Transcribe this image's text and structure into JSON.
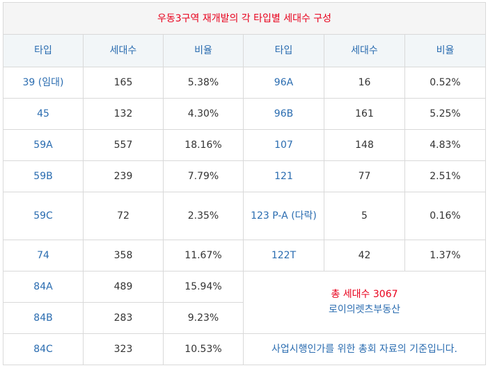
{
  "title": "우동3구역 재개발의 각 타입별 세대수 구성",
  "headers": [
    "타입",
    "세대수",
    "비율",
    "타입",
    "세대수",
    "비율"
  ],
  "rows": [
    {
      "t1": "39 (임대)",
      "c1": "165",
      "p1": "5.38%",
      "t2": "96A",
      "c2": "16",
      "p2": "0.52%"
    },
    {
      "t1": "45",
      "c1": "132",
      "p1": "4.30%",
      "t2": "96B",
      "c2": "161",
      "p2": "5.25%"
    },
    {
      "t1": "59A",
      "c1": "557",
      "p1": "18.16%",
      "t2": "107",
      "c2": "148",
      "p2": "4.83%"
    },
    {
      "t1": "59B",
      "c1": "239",
      "p1": "7.79%",
      "t2": "121",
      "c2": "77",
      "p2": "2.51%"
    },
    {
      "t1": "59C",
      "c1": "72",
      "p1": "2.35%",
      "t2": "123 P-A (다락)",
      "c2": "5",
      "p2": "0.16%"
    },
    {
      "t1": "74",
      "c1": "358",
      "p1": "11.67%",
      "t2": "122T",
      "c2": "42",
      "p2": "1.37%"
    },
    {
      "t1": "84A",
      "c1": "489",
      "p1": "15.94%"
    },
    {
      "t1": "84B",
      "c1": "283",
      "p1": "9.23%"
    },
    {
      "t1": "84C",
      "c1": "323",
      "p1": "10.53%"
    }
  ],
  "summary": {
    "total": "총 세대수 3067",
    "source": "로이의렛츠부동산",
    "note": "사업시행인가를 위한 총회 자료의 기준입니다."
  }
}
